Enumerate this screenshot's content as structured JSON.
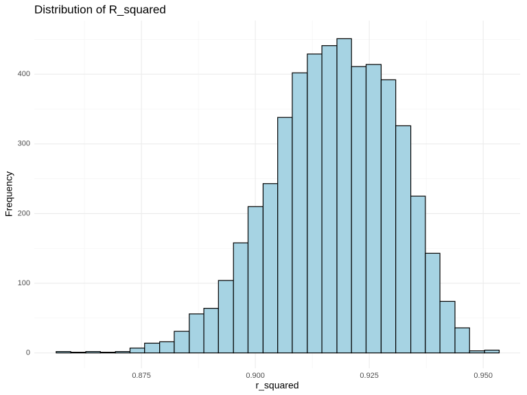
{
  "chart_data": {
    "type": "histogram",
    "title": "Distribution of R_squared",
    "x_label": "r_squared",
    "y_label": "Frequency",
    "bins": [
      0.8563,
      0.8595,
      0.8628,
      0.866,
      0.8693,
      0.8725,
      0.8757,
      0.879,
      0.8822,
      0.8855,
      0.8887,
      0.8919,
      0.8952,
      0.8984,
      0.9017,
      0.9049,
      0.9081,
      0.9114,
      0.9146,
      0.9179,
      0.9211,
      0.9243,
      0.9276,
      0.9308,
      0.9341,
      0.9373,
      0.9405,
      0.9438,
      0.947,
      0.9503,
      0.9535
    ],
    "counts": [
      2,
      1,
      2,
      1,
      2,
      7,
      14,
      16,
      31,
      56,
      64,
      104,
      158,
      210,
      243,
      338,
      402,
      429,
      441,
      451,
      411,
      414,
      392,
      326,
      225,
      143,
      74,
      36,
      3,
      4
    ],
    "color": "#a6d3e3",
    "edge_color": "#000000",
    "xlim": [
      0.8515,
      0.9581
    ],
    "ylim": [
      -22,
      477
    ],
    "xticks": [
      0.875,
      {
        "value": 0.9,
        "label": "0.900"
      },
      0.925,
      {
        "value": 0.95,
        "label": "0.950"
      }
    ],
    "yticks": [
      0,
      100,
      200,
      300,
      400
    ],
    "x_minor_grid": [
      0.8625,
      0.8875,
      0.9125,
      0.9375
    ],
    "y_minor_grid": [
      50,
      150,
      250,
      350,
      450
    ],
    "grid": true
  }
}
